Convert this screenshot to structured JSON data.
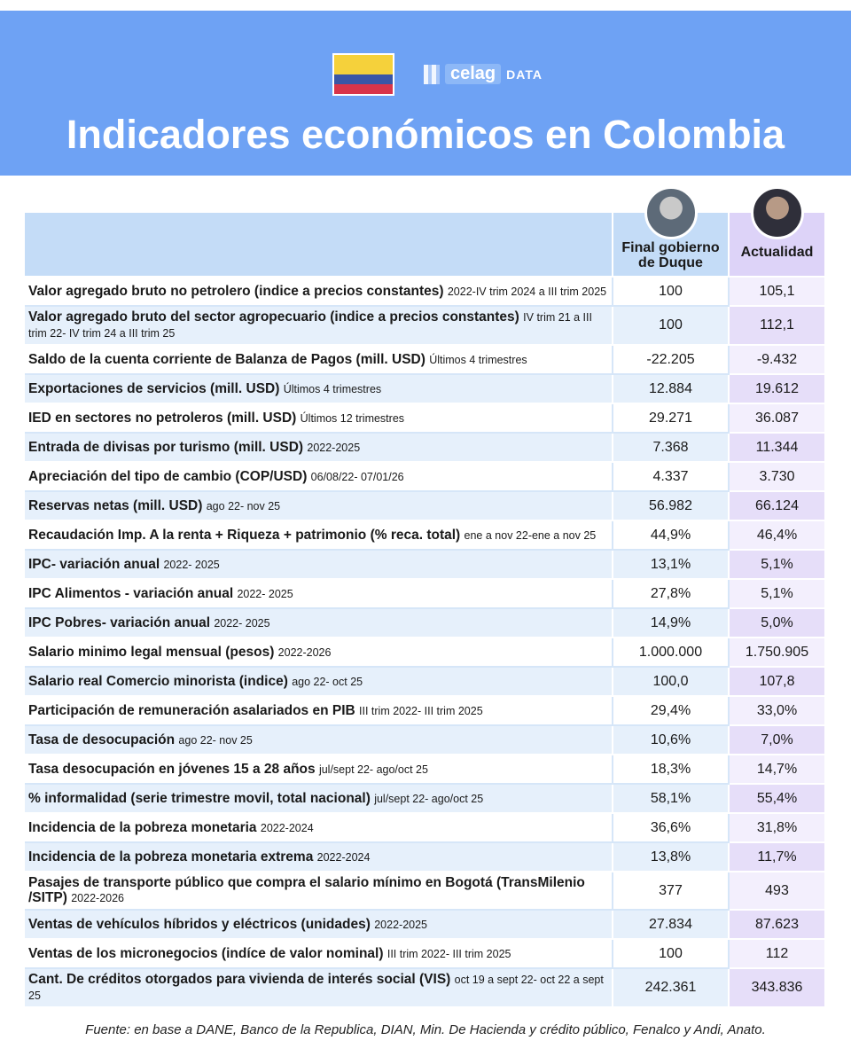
{
  "header": {
    "logo_text": "celag",
    "logo_tag": "DATA",
    "title": "Indicadores económicos en Colombia"
  },
  "table": {
    "columns": [
      "Final gobierno de Duque",
      "Actualidad"
    ],
    "rows": [
      {
        "label": "Valor agregado bruto no petrolero (indice a precios constantes)",
        "note": "2022-IV trim 2024 a III trim 2025",
        "values": [
          "100",
          "105,1"
        ]
      },
      {
        "label": "Valor agregado bruto del sector agropecuario (indice a precios constantes)",
        "note": "IV trim 21 a III trim 22- IV trim 24 a III trim 25",
        "values": [
          "100",
          "112,1"
        ]
      },
      {
        "label": "Saldo de la cuenta corriente de Balanza de Pagos (mill. USD)",
        "note": "Últimos 4 trimestres",
        "values": [
          "-22.205",
          "-9.432"
        ]
      },
      {
        "label": "Exportaciones de servicios (mill. USD)",
        "note": "Últimos 4 trimestres",
        "values": [
          "12.884",
          "19.612"
        ]
      },
      {
        "label": "IED en sectores no petroleros (mill. USD)",
        "note": "Últimos 12 trimestres",
        "values": [
          "29.271",
          "36.087"
        ]
      },
      {
        "label": "Entrada de divisas por turismo (mill. USD)",
        "note": "2022-2025",
        "values": [
          "7.368",
          "11.344"
        ]
      },
      {
        "label": "Apreciación del tipo de cambio (COP/USD)",
        "note": "06/08/22- 07/01/26",
        "values": [
          "4.337",
          "3.730"
        ]
      },
      {
        "label": "Reservas netas (mill. USD)",
        "note": "ago 22- nov 25",
        "values": [
          "56.982",
          "66.124"
        ]
      },
      {
        "label": "Recaudación Imp. A la renta + Riqueza + patrimonio (% reca. total)",
        "note": "ene a nov 22-ene a nov 25",
        "values": [
          "44,9%",
          "46,4%"
        ]
      },
      {
        "label": "IPC- variación anual",
        "note": "2022- 2025",
        "values": [
          "13,1%",
          "5,1%"
        ]
      },
      {
        "label": "IPC Alimentos - variación anual",
        "note": "2022- 2025",
        "values": [
          "27,8%",
          "5,1%"
        ]
      },
      {
        "label": "IPC Pobres- variación anual",
        "note": "2022- 2025",
        "values": [
          "14,9%",
          "5,0%"
        ]
      },
      {
        "label": "Salario minimo legal mensual (pesos)",
        "note": "2022-2026",
        "values": [
          "1.000.000",
          "1.750.905"
        ]
      },
      {
        "label": "Salario real Comercio minorista (indice)",
        "note": "ago 22- oct 25",
        "values": [
          "100,0",
          "107,8"
        ]
      },
      {
        "label": "Participación de remuneración asalariados en PIB",
        "note": "III trim 2022- III trim 2025",
        "values": [
          "29,4%",
          "33,0%"
        ]
      },
      {
        "label": "Tasa de desocupación",
        "note": "ago 22- nov 25",
        "values": [
          "10,6%",
          "7,0%"
        ]
      },
      {
        "label": "Tasa desocupación en jóvenes 15 a 28 años",
        "note": "jul/sept 22- ago/oct 25",
        "values": [
          "18,3%",
          "14,7%"
        ]
      },
      {
        "label": "% informalidad (serie trimestre movil, total nacional)",
        "note": "jul/sept 22- ago/oct 25",
        "values": [
          "58,1%",
          "55,4%"
        ]
      },
      {
        "label": "Incidencia de la pobreza monetaria",
        "note": "2022-2024",
        "values": [
          "36,6%",
          "31,8%"
        ]
      },
      {
        "label": "Incidencia de la pobreza monetaria extrema",
        "note": "2022-2024",
        "values": [
          "13,8%",
          "11,7%"
        ]
      },
      {
        "label": "Pasajes de transporte público que compra el salario mínimo en Bogotá (TransMilenio /SITP)",
        "note": "2022-2026",
        "values": [
          "377",
          "493"
        ]
      },
      {
        "label": "Ventas de vehículos híbridos y eléctricos (unidades)",
        "note": "2022-2025",
        "values": [
          "27.834",
          "87.623"
        ]
      },
      {
        "label": "Ventas de los micronegocios (indíce de valor nominal)",
        "note": "III trim 2022- III trim 2025",
        "values": [
          "100",
          "112"
        ]
      },
      {
        "label": "Cant. De créditos otorgados para vivienda de interés social (VIS)",
        "note": "oct 19 a sept 22- oct 22 a sept 25",
        "values": [
          "242.361",
          "343.836"
        ]
      }
    ]
  },
  "footer": {
    "source": "Fuente: en base a DANE, Banco de la Republica, DIAN, Min. De Hacienda y crédito público, Fenalco y Andi, Anato."
  }
}
